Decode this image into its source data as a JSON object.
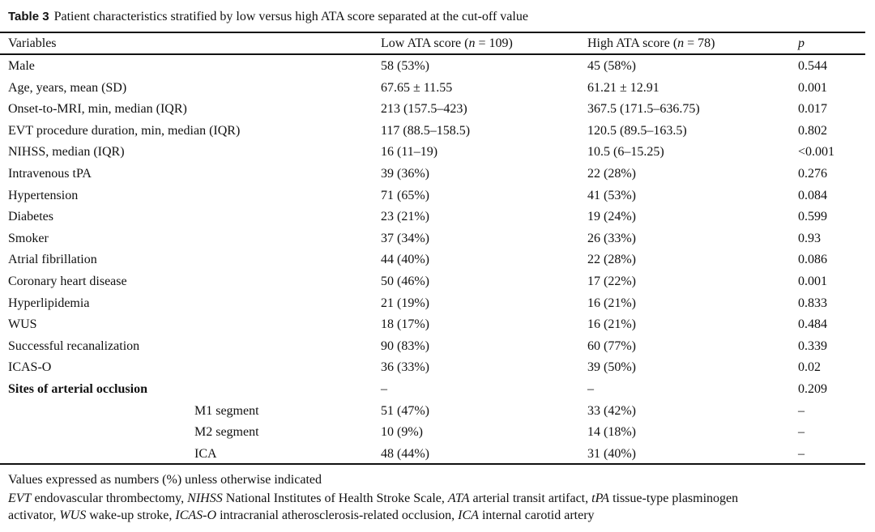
{
  "title": {
    "label": "Table 3",
    "text": "Patient characteristics stratified by low versus high ATA score separated at the cut-off value"
  },
  "header": {
    "variables": "Variables",
    "low": {
      "prefix": "Low ATA score (",
      "n": "n",
      "suffix": " = 109)"
    },
    "high": {
      "prefix": "High ATA score (",
      "n": "n",
      "suffix": " = 78)"
    },
    "p": "p"
  },
  "rows": [
    {
      "variable": "Male",
      "low": "58 (53%)",
      "high": "45 (58%)",
      "p": "0.544"
    },
    {
      "variable": "Age, years, mean (SD)",
      "low": "67.65 ± 11.55",
      "high": "61.21 ± 12.91",
      "p": "0.001"
    },
    {
      "variable": "Onset-to-MRI, min, median (IQR)",
      "low": "213 (157.5–423)",
      "high": "367.5 (171.5–636.75)",
      "p": "0.017"
    },
    {
      "variable": "EVT procedure duration, min, median (IQR)",
      "low": "117 (88.5–158.5)",
      "high": "120.5 (89.5–163.5)",
      "p": "0.802"
    },
    {
      "variable": "NIHSS, median (IQR)",
      "low": "16 (11–19)",
      "high": "10.5 (6–15.25)",
      "p": "<0.001"
    },
    {
      "variable": "Intravenous tPA",
      "low": "39 (36%)",
      "high": "22 (28%)",
      "p": "0.276"
    },
    {
      "variable": "Hypertension",
      "low": "71 (65%)",
      "high": "41 (53%)",
      "p": "0.084"
    },
    {
      "variable": "Diabetes",
      "low": "23 (21%)",
      "high": "19 (24%)",
      "p": "0.599"
    },
    {
      "variable": "Smoker",
      "low": "37 (34%)",
      "high": "26 (33%)",
      "p": "0.93"
    },
    {
      "variable": "Atrial fibrillation",
      "low": "44 (40%)",
      "high": "22 (28%)",
      "p": "0.086"
    },
    {
      "variable": "Coronary heart disease",
      "low": "50 (46%)",
      "high": "17 (22%)",
      "p": "0.001"
    },
    {
      "variable": "Hyperlipidemia",
      "low": "21 (19%)",
      "high": "16 (21%)",
      "p": "0.833"
    },
    {
      "variable": "WUS",
      "low": "18 (17%)",
      "high": "16 (21%)",
      "p": "0.484"
    },
    {
      "variable": "Successful recanalization",
      "low": "90 (83%)",
      "high": "60 (77%)",
      "p": "0.339"
    },
    {
      "variable": "ICAS-O",
      "low": "36 (33%)",
      "high": "39 (50%)",
      "p": "0.02"
    },
    {
      "variable": "Sites of arterial occlusion",
      "low": "–",
      "high": "–",
      "p": "0.209",
      "bold": true
    },
    {
      "variable": "M1 segment",
      "low": "51 (47%)",
      "high": "33 (42%)",
      "p": "–",
      "sub": true
    },
    {
      "variable": "M2 segment",
      "low": "10 (9%)",
      "high": "14 (18%)",
      "p": "–",
      "sub": true
    },
    {
      "variable": "ICA",
      "low": "48 (44%)",
      "high": "31 (40%)",
      "p": "–",
      "sub": true
    }
  ],
  "footnotes": {
    "line1": "Values expressed as numbers (%) unless otherwise indicated",
    "abbrev": [
      {
        "abbr": "EVT",
        "def": " endovascular thrombectomy, "
      },
      {
        "abbr": "NIHSS",
        "def": " National Institutes of Health Stroke Scale, "
      },
      {
        "abbr": "ATA",
        "def": " arterial transit artifact, "
      },
      {
        "abbr": "tPA",
        "def": " tissue-type plasminogen"
      },
      {
        "abbr": "",
        "def": "activator, "
      },
      {
        "abbr": "WUS",
        "def": " wake-up stroke, "
      },
      {
        "abbr": "ICAS-O",
        "def": " intracranial atherosclerosis-related occlusion, "
      },
      {
        "abbr": "ICA",
        "def": " internal carotid artery"
      }
    ]
  }
}
